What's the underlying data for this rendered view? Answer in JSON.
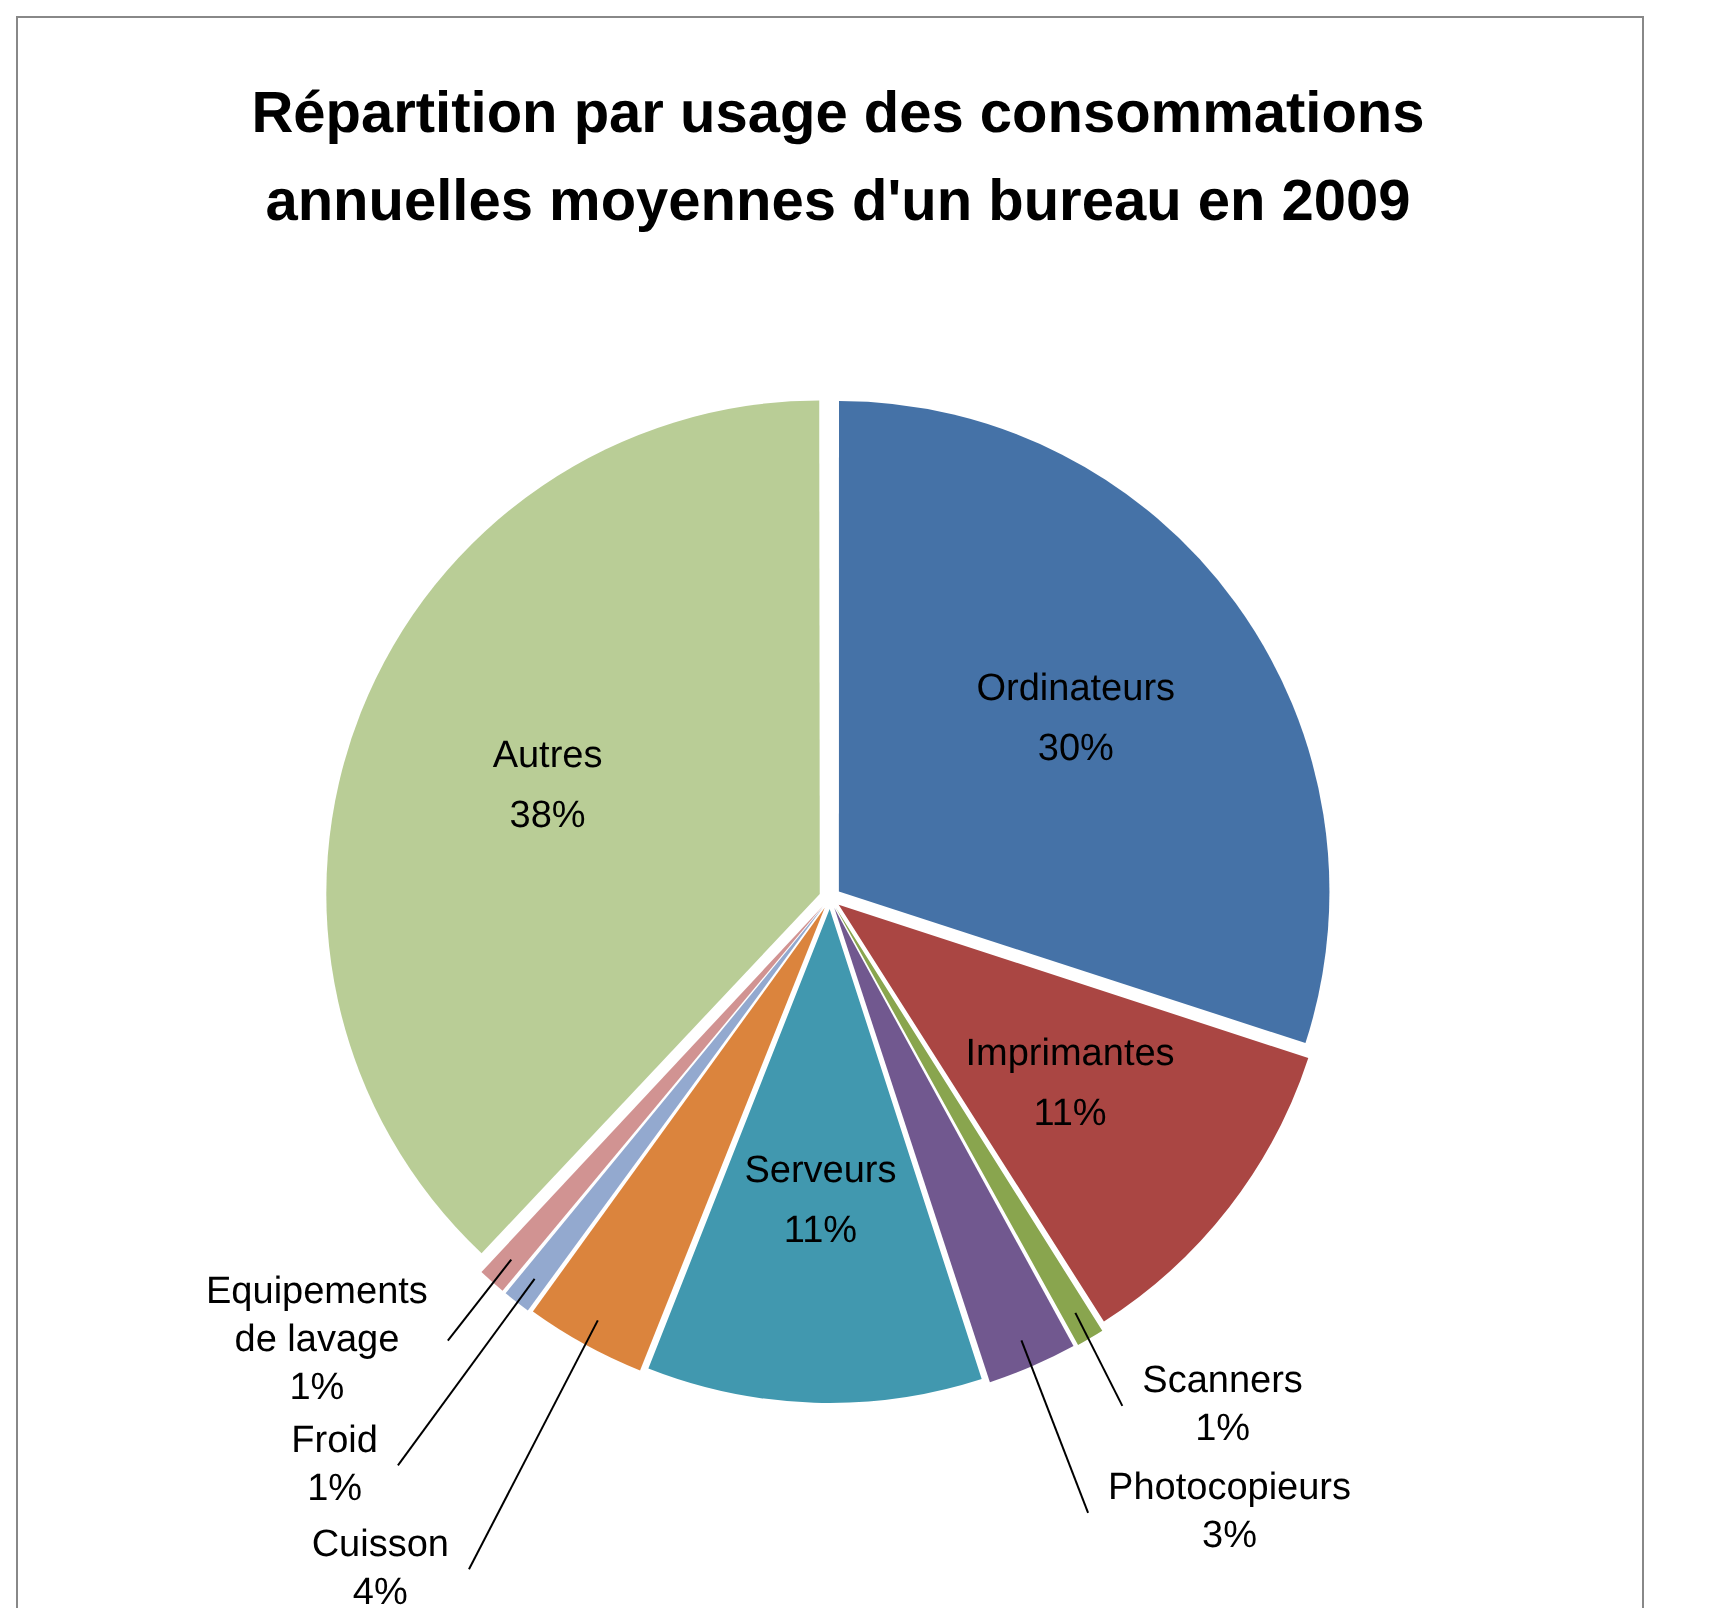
{
  "chart_data": {
    "type": "pie",
    "title": "Répartition par usage des consommations annuelles moyennes d'un bureau en 2009",
    "categories": [
      "Ordinateurs",
      "Imprimantes",
      "Scanners",
      "Photocopieurs",
      "Serveurs",
      "Cuisson",
      "Froid",
      "Equipements de lavage",
      "Autres"
    ],
    "values": [
      30,
      11,
      1,
      3,
      11,
      4,
      1,
      1,
      38
    ],
    "value_labels": [
      "30%",
      "11%",
      "1%",
      "3%",
      "11%",
      "4%",
      "1%",
      "1%",
      "38%"
    ],
    "colors": [
      "#4572a7",
      "#aa4643",
      "#89a54e",
      "#71588f",
      "#4198af",
      "#db843d",
      "#93a9cf",
      "#d19392",
      "#b9cd96"
    ],
    "legend": false
  }
}
